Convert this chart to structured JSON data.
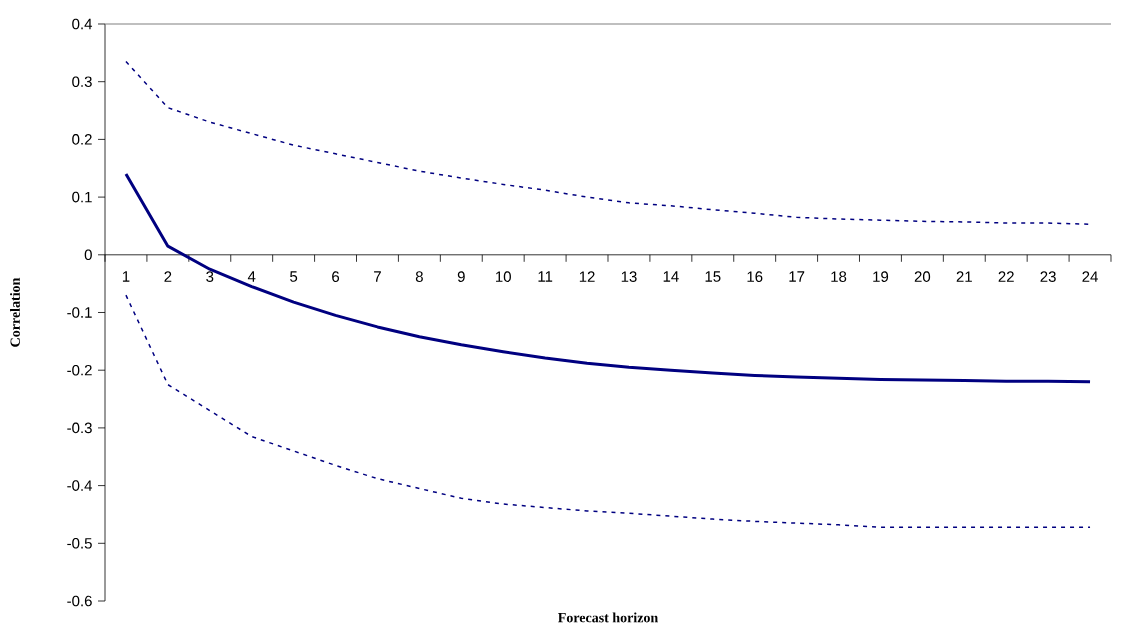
{
  "chart_data": {
    "type": "line",
    "xlabel": "Forecast horizon",
    "ylabel": "Correlation",
    "categories": [
      "1",
      "2",
      "3",
      "4",
      "5",
      "6",
      "7",
      "8",
      "9",
      "10",
      "11",
      "12",
      "13",
      "14",
      "15",
      "16",
      "17",
      "18",
      "19",
      "20",
      "21",
      "22",
      "23",
      "24"
    ],
    "ylim": [
      -0.6,
      0.4
    ],
    "yticks": [
      -0.6,
      -0.5,
      -0.4,
      -0.3,
      -0.2,
      -0.1,
      0,
      0.1,
      0.2,
      0.3,
      0.4
    ],
    "series": [
      {
        "color": "#000080",
        "line_style": "dashed",
        "values": [
          0.335,
          0.255,
          0.23,
          0.21,
          0.19,
          0.175,
          0.16,
          0.145,
          0.133,
          0.122,
          0.112,
          0.1,
          0.09,
          0.085,
          0.078,
          0.072,
          0.065,
          0.062,
          0.06,
          0.058,
          0.057,
          0.055,
          0.055,
          0.053
        ]
      },
      {
        "color": "#000080",
        "line_style": "solid",
        "values": [
          0.14,
          0.015,
          -0.025,
          -0.055,
          -0.082,
          -0.105,
          -0.125,
          -0.142,
          -0.156,
          -0.168,
          -0.179,
          -0.188,
          -0.195,
          -0.2,
          -0.205,
          -0.209,
          -0.212,
          -0.214,
          -0.216,
          -0.217,
          -0.218,
          -0.219,
          -0.219,
          -0.22
        ]
      },
      {
        "color": "#000080",
        "line_style": "dashed",
        "values": [
          -0.07,
          -0.225,
          -0.27,
          -0.315,
          -0.34,
          -0.365,
          -0.388,
          -0.405,
          -0.422,
          -0.432,
          -0.438,
          -0.444,
          -0.448,
          -0.453,
          -0.458,
          -0.462,
          -0.465,
          -0.468,
          -0.472,
          -0.472,
          -0.472,
          -0.472,
          -0.472,
          -0.472
        ]
      }
    ]
  }
}
